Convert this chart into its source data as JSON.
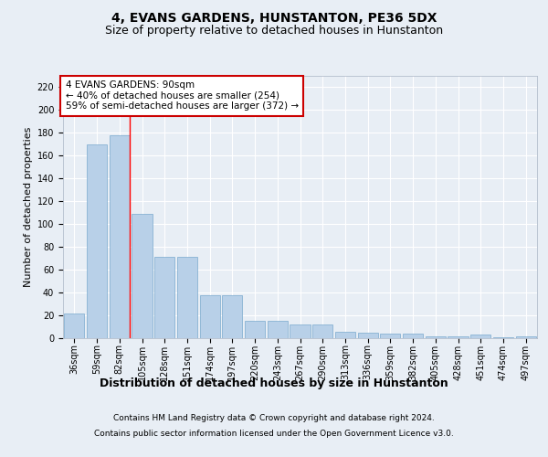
{
  "title": "4, EVANS GARDENS, HUNSTANTON, PE36 5DX",
  "subtitle": "Size of property relative to detached houses in Hunstanton",
  "xlabel": "Distribution of detached houses by size in Hunstanton",
  "ylabel": "Number of detached properties",
  "categories": [
    "36sqm",
    "59sqm",
    "82sqm",
    "105sqm",
    "128sqm",
    "151sqm",
    "174sqm",
    "197sqm",
    "220sqm",
    "243sqm",
    "267sqm",
    "290sqm",
    "313sqm",
    "336sqm",
    "359sqm",
    "382sqm",
    "405sqm",
    "428sqm",
    "451sqm",
    "474sqm",
    "497sqm"
  ],
  "values": [
    22,
    170,
    178,
    109,
    71,
    71,
    38,
    38,
    15,
    15,
    12,
    12,
    6,
    5,
    4,
    4,
    2,
    2,
    3,
    1,
    2
  ],
  "bar_color": "#b8d0e8",
  "bar_edge_color": "#7aaace",
  "red_line_x": 2,
  "annotation_text": "4 EVANS GARDENS: 90sqm\n← 40% of detached houses are smaller (254)\n59% of semi-detached houses are larger (372) →",
  "annotation_box_color": "#ffffff",
  "annotation_box_edge": "#cc0000",
  "ylim": [
    0,
    230
  ],
  "yticks": [
    0,
    20,
    40,
    60,
    80,
    100,
    120,
    140,
    160,
    180,
    200,
    220
  ],
  "footer_line1": "Contains HM Land Registry data © Crown copyright and database right 2024.",
  "footer_line2": "Contains public sector information licensed under the Open Government Licence v3.0.",
  "bg_color": "#e8eef5",
  "grid_color": "#ffffff",
  "title_fontsize": 10,
  "subtitle_fontsize": 9,
  "ylabel_fontsize": 8,
  "xlabel_fontsize": 9,
  "tick_fontsize": 7,
  "annotation_fontsize": 7.5,
  "footer_fontsize": 6.5
}
